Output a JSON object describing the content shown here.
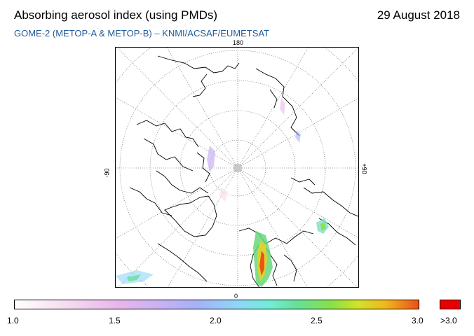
{
  "header": {
    "title": "Absorbing aerosol index (using PMDs)",
    "date": "29 August 2018",
    "subtitle": "GOME-2 (METOP-A & METOP-B)  –  KNMI/ACSAF/EUMETSAT"
  },
  "map": {
    "projection": "polar-stereographic-north",
    "longitude_labels": {
      "top": "180",
      "bottom": "0",
      "left": "-90",
      "right": "+90"
    },
    "colors": {
      "coastline": "#000000",
      "graticule": "#555555",
      "pole_marker": "#c8c8c8"
    }
  },
  "legend": {
    "ticks": [
      "1.0",
      "1.5",
      "2.0",
      "2.5",
      "3.0"
    ],
    "tick_values": [
      1.0,
      1.5,
      2.0,
      2.5,
      3.0
    ],
    "range": [
      1.0,
      3.0
    ],
    "overflow_label": ">3.0",
    "overflow_color": "#e80000"
  }
}
